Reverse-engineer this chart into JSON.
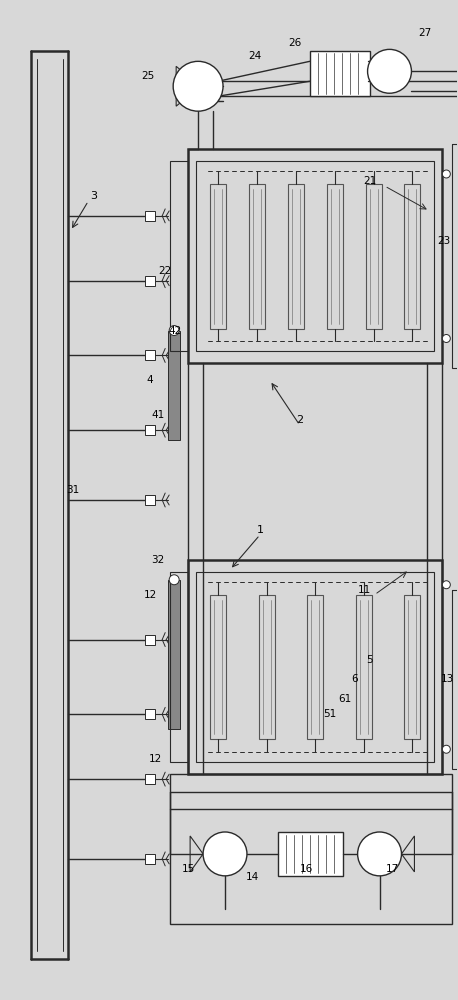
{
  "bg_color": "#d8d8d8",
  "line_color": "#2a2a2a",
  "purple_color": "#7b5ea7",
  "fig_width": 4.58,
  "fig_height": 10.0,
  "lw": 1.0,
  "tlw": 1.8
}
